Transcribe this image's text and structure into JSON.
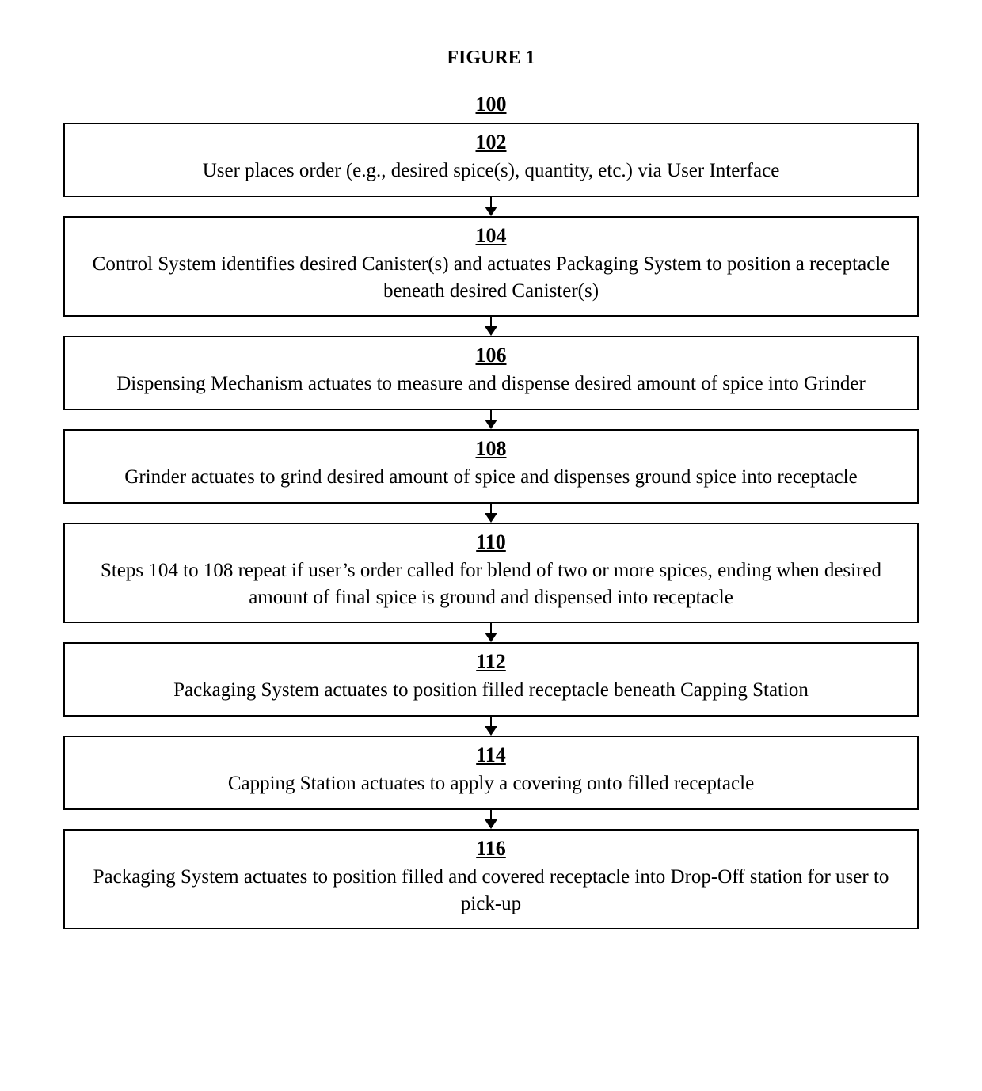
{
  "figure_title": "FIGURE 1",
  "top_number": "100",
  "box_border_color": "#000000",
  "box_border_width": 2,
  "background_color": "#ffffff",
  "text_color": "#000000",
  "font_family": "Times New Roman",
  "title_fontsize": 24,
  "number_fontsize": 26,
  "text_fontsize": 25,
  "steps": [
    {
      "number": "102",
      "text": "User places order (e.g., desired spice(s), quantity, etc.) via User Interface"
    },
    {
      "number": "104",
      "text": "Control System identifies desired Canister(s) and actuates Packaging System to position a receptacle beneath desired Canister(s)"
    },
    {
      "number": "106",
      "text": "Dispensing Mechanism actuates to measure and dispense desired amount of spice into Grinder"
    },
    {
      "number": "108",
      "text": "Grinder actuates to grind desired amount of spice and dispenses ground spice into receptacle"
    },
    {
      "number": "110",
      "text": "Steps 104 to 108 repeat if user’s order called for blend of two or more spices, ending when desired amount of final spice is ground and dispensed into receptacle"
    },
    {
      "number": "112",
      "text": "Packaging System actuates to position filled receptacle beneath Capping Station"
    },
    {
      "number": "114",
      "text": "Capping Station actuates to apply a covering onto filled receptacle"
    },
    {
      "number": "116",
      "text": "Packaging System actuates to position filled and covered receptacle into Drop-Off station for user to pick-up"
    }
  ]
}
